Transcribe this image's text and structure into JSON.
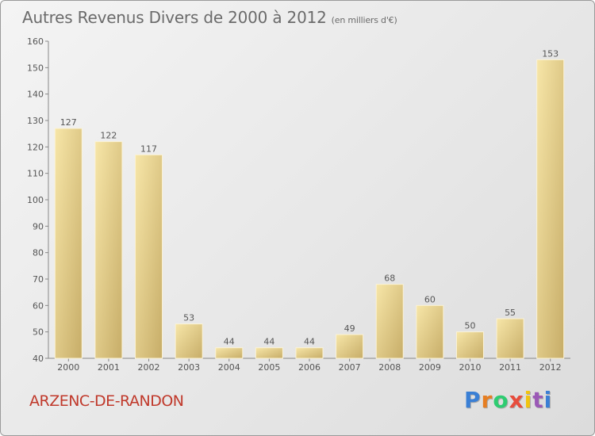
{
  "header": {
    "title": "Autres Revenus Divers de 2000 à 2012",
    "subtitle": "(en milliers d'€)"
  },
  "footer": {
    "commune": "ARZENC-DE-RANDON",
    "logo_text": "Proxiti",
    "logo_colors": [
      "#3a7fd5",
      "#e67e22",
      "#2ecc71",
      "#e74c3c",
      "#f1c40f",
      "#9b59b6",
      "#3a7fd5"
    ]
  },
  "colors": {
    "bar_light": "#f6e3a4",
    "bar_dark": "#c9b06a",
    "text": "#555555"
  },
  "chart_data": {
    "type": "bar",
    "title": "Autres Revenus Divers de 2000 à 2012",
    "subtitle": "(en milliers d'€)",
    "categories": [
      "2000",
      "2001",
      "2002",
      "2003",
      "2004",
      "2005",
      "2006",
      "2007",
      "2008",
      "2009",
      "2010",
      "2011",
      "2012"
    ],
    "values": [
      127,
      122,
      117,
      53,
      44,
      44,
      44,
      49,
      68,
      60,
      50,
      55,
      153
    ],
    "ylim": [
      40,
      160
    ],
    "yticks": [
      40,
      50,
      60,
      70,
      80,
      90,
      100,
      110,
      120,
      130,
      140,
      150,
      160
    ],
    "grid": false,
    "xlabel": "",
    "ylabel": ""
  }
}
